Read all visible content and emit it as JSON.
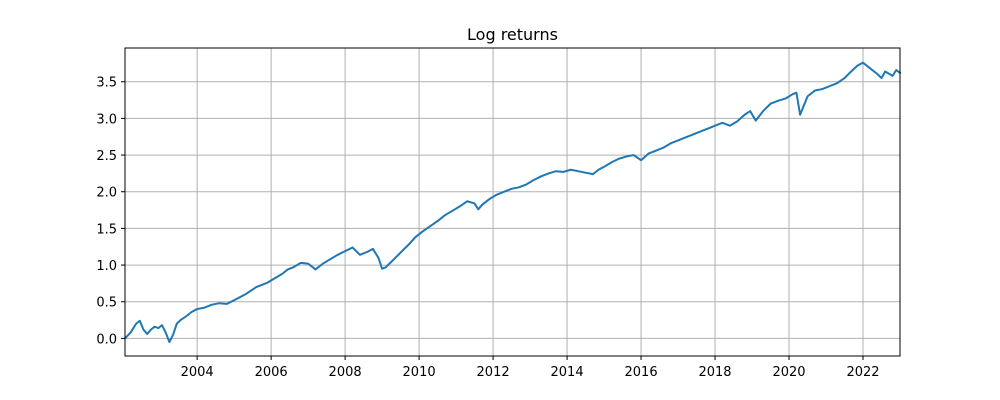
{
  "chart_data": {
    "type": "line",
    "title": "Log returns",
    "xlabel": "",
    "ylabel": "",
    "xlim": [
      2002.05,
      2023.0
    ],
    "ylim": [
      -0.24,
      3.96
    ],
    "x_ticks": [
      2004,
      2006,
      2008,
      2010,
      2012,
      2014,
      2016,
      2018,
      2020,
      2022
    ],
    "y_ticks": [
      0.0,
      0.5,
      1.0,
      1.5,
      2.0,
      2.5,
      3.0,
      3.5
    ],
    "y_tick_labels": [
      "0.0",
      "0.5",
      "1.0",
      "1.5",
      "2.0",
      "2.5",
      "3.0",
      "3.5"
    ],
    "grid": true,
    "series": [
      {
        "color": "#1f77b4",
        "x": [
          2002.05,
          2002.2,
          2002.35,
          2002.45,
          2002.55,
          2002.65,
          2002.75,
          2002.85,
          2002.95,
          2003.05,
          2003.15,
          2003.25,
          2003.35,
          2003.45,
          2003.55,
          2003.7,
          2003.85,
          2004.0,
          2004.2,
          2004.4,
          2004.6,
          2004.8,
          2005.0,
          2005.3,
          2005.6,
          2005.9,
          2006.1,
          2006.3,
          2006.45,
          2006.6,
          2006.8,
          2007.0,
          2007.2,
          2007.4,
          2007.6,
          2007.8,
          2008.0,
          2008.2,
          2008.4,
          2008.6,
          2008.75,
          2008.9,
          2009.0,
          2009.1,
          2009.3,
          2009.5,
          2009.7,
          2009.9,
          2010.1,
          2010.3,
          2010.5,
          2010.7,
          2010.9,
          2011.1,
          2011.3,
          2011.5,
          2011.6,
          2011.7,
          2011.9,
          2012.1,
          2012.3,
          2012.5,
          2012.7,
          2012.9,
          2013.1,
          2013.3,
          2013.5,
          2013.7,
          2013.9,
          2014.1,
          2014.3,
          2014.5,
          2014.7,
          2014.85,
          2015.0,
          2015.2,
          2015.4,
          2015.6,
          2015.8,
          2016.0,
          2016.2,
          2016.4,
          2016.6,
          2016.8,
          2017.0,
          2017.2,
          2017.4,
          2017.6,
          2017.8,
          2018.0,
          2018.2,
          2018.4,
          2018.6,
          2018.8,
          2018.95,
          2019.1,
          2019.3,
          2019.5,
          2019.7,
          2019.9,
          2020.1,
          2020.2,
          2020.3,
          2020.5,
          2020.7,
          2020.9,
          2021.1,
          2021.3,
          2021.5,
          2021.7,
          2021.85,
          2022.0,
          2022.2,
          2022.4,
          2022.5,
          2022.6,
          2022.8,
          2022.9,
          2023.0
        ],
        "y": [
          0.0,
          0.08,
          0.2,
          0.24,
          0.12,
          0.06,
          0.12,
          0.16,
          0.14,
          0.18,
          0.08,
          -0.05,
          0.05,
          0.2,
          0.25,
          0.3,
          0.36,
          0.4,
          0.42,
          0.46,
          0.48,
          0.47,
          0.52,
          0.6,
          0.7,
          0.76,
          0.82,
          0.88,
          0.94,
          0.97,
          1.03,
          1.02,
          0.94,
          1.02,
          1.08,
          1.14,
          1.19,
          1.24,
          1.14,
          1.18,
          1.22,
          1.1,
          0.95,
          0.97,
          1.07,
          1.17,
          1.27,
          1.38,
          1.46,
          1.53,
          1.6,
          1.68,
          1.74,
          1.8,
          1.87,
          1.84,
          1.76,
          1.82,
          1.9,
          1.96,
          2.0,
          2.04,
          2.06,
          2.1,
          2.16,
          2.21,
          2.25,
          2.28,
          2.27,
          2.3,
          2.28,
          2.26,
          2.24,
          2.3,
          2.34,
          2.4,
          2.45,
          2.48,
          2.5,
          2.43,
          2.52,
          2.56,
          2.6,
          2.66,
          2.7,
          2.74,
          2.78,
          2.82,
          2.86,
          2.9,
          2.94,
          2.9,
          2.96,
          3.05,
          3.1,
          2.97,
          3.1,
          3.2,
          3.24,
          3.27,
          3.33,
          3.35,
          3.05,
          3.3,
          3.38,
          3.4,
          3.44,
          3.48,
          3.55,
          3.65,
          3.72,
          3.76,
          3.68,
          3.6,
          3.55,
          3.64,
          3.58,
          3.66,
          3.62
        ]
      }
    ]
  }
}
